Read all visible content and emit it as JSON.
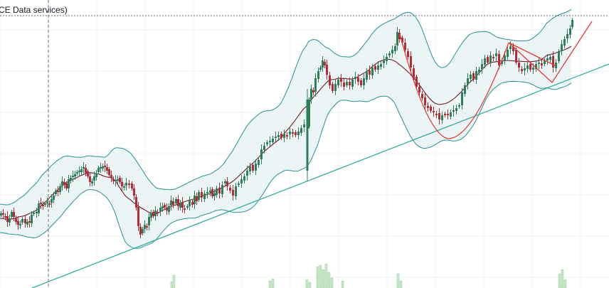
{
  "header": {
    "source_text": "CE Data services)"
  },
  "colors": {
    "background": "#ffffff",
    "grid": "#eef0f4",
    "candle_up": "#2e7d5b",
    "candle_down": "#b22b35",
    "bollinger_band": "#2a8f96",
    "bollinger_fill": "#e6f3f3",
    "moving_average": "#7a2a35",
    "trendline": "#26a69a",
    "pattern_line": "#e53935",
    "volume": "#c8e6c9",
    "crosshair": "#6a6d78"
  },
  "chart_data": {
    "type": "candlestick",
    "title": "",
    "xlabel": "",
    "ylabel": "",
    "grid": true,
    "x_range": [
      0,
      177
    ],
    "ylim": [
      0,
      405
    ],
    "indicators": [
      "bollinger_bands",
      "moving_average",
      "trendline",
      "cup_and_handle_pattern",
      "volume"
    ],
    "close_series": [
      [
        0,
        300
      ],
      [
        3,
        302
      ],
      [
        6,
        305
      ],
      [
        9,
        312
      ],
      [
        12,
        307
      ],
      [
        15,
        298
      ],
      [
        18,
        305
      ],
      [
        21,
        312
      ],
      [
        24,
        316
      ],
      [
        27,
        315
      ],
      [
        30,
        308
      ],
      [
        34,
        314
      ],
      [
        37,
        312
      ],
      [
        40,
        313
      ],
      [
        43,
        302
      ],
      [
        46,
        299
      ],
      [
        50,
        298
      ],
      [
        53,
        286
      ],
      [
        56,
        287
      ],
      [
        59,
        290
      ],
      [
        62,
        286
      ],
      [
        65,
        284
      ],
      [
        68,
        286
      ],
      [
        71,
        280
      ],
      [
        74,
        275
      ],
      [
        77,
        268
      ],
      [
        80,
        268
      ],
      [
        83,
        262
      ],
      [
        86,
        255
      ],
      [
        89,
        260
      ],
      [
        92,
        265
      ],
      [
        95,
        252
      ],
      [
        98,
        250
      ],
      [
        101,
        247
      ],
      [
        104,
        245
      ],
      [
        107,
        242
      ],
      [
        110,
        240
      ],
      [
        113,
        238
      ],
      [
        116,
        235
      ],
      [
        119,
        243
      ],
      [
        122,
        248
      ],
      [
        125,
        256
      ],
      [
        128,
        255
      ],
      [
        131,
        248
      ],
      [
        134,
        244
      ],
      [
        137,
        236
      ],
      [
        140,
        235
      ],
      [
        143,
        234
      ],
      [
        146,
        234
      ],
      [
        149,
        240
      ],
      [
        152,
        246
      ],
      [
        155,
        250
      ],
      [
        158,
        255
      ],
      [
        161,
        253
      ],
      [
        164,
        252
      ],
      [
        167,
        256
      ],
      [
        170,
        262
      ],
      [
        173,
        262
      ],
      [
        176,
        257
      ],
      [
        180,
        260
      ],
      [
        184,
        265
      ],
      [
        187,
        275
      ],
      [
        190,
        292
      ],
      [
        193,
        318
      ],
      [
        196,
        330
      ],
      [
        199,
        322
      ],
      [
        202,
        316
      ],
      [
        205,
        318
      ],
      [
        208,
        305
      ],
      [
        211,
        300
      ],
      [
        214,
        304
      ],
      [
        217,
        296
      ],
      [
        220,
        298
      ],
      [
        224,
        292
      ],
      [
        227,
        290
      ],
      [
        230,
        292
      ],
      [
        233,
        296
      ],
      [
        236,
        290
      ],
      [
        239,
        282
      ],
      [
        242,
        288
      ],
      [
        246,
        280
      ],
      [
        249,
        290
      ],
      [
        252,
        285
      ],
      [
        255,
        292
      ],
      [
        258,
        294
      ],
      [
        262,
        290
      ],
      [
        265,
        282
      ],
      [
        269,
        288
      ],
      [
        272,
        275
      ],
      [
        275,
        283
      ],
      [
        278,
        270
      ],
      [
        282,
        278
      ],
      [
        286,
        272
      ],
      [
        290,
        270
      ],
      [
        294,
        268
      ],
      [
        297,
        276
      ],
      [
        300,
        272
      ],
      [
        303,
        265
      ],
      [
        307,
        272
      ],
      [
        311,
        260
      ],
      [
        315,
        255
      ],
      [
        318,
        262
      ],
      [
        322,
        268
      ],
      [
        326,
        275
      ],
      [
        330,
        262
      ],
      [
        334,
        258
      ],
      [
        338,
        252
      ],
      [
        342,
        248
      ],
      [
        346,
        240
      ],
      [
        350,
        234
      ],
      [
        354,
        240
      ],
      [
        358,
        230
      ],
      [
        362,
        225
      ],
      [
        366,
        210
      ],
      [
        370,
        205
      ],
      [
        374,
        200
      ],
      [
        378,
        198
      ],
      [
        382,
        195
      ],
      [
        386,
        192
      ],
      [
        390,
        190
      ],
      [
        394,
        194
      ],
      [
        398,
        188
      ],
      [
        402,
        190
      ],
      [
        406,
        185
      ],
      [
        410,
        188
      ],
      [
        414,
        190
      ],
      [
        418,
        185
      ],
      [
        422,
        180
      ],
      [
        426,
        175
      ],
      [
        431,
        180
      ],
      [
        433,
        140
      ],
      [
        436,
        125
      ],
      [
        439,
        130
      ],
      [
        442,
        110
      ],
      [
        446,
        100
      ],
      [
        449,
        95
      ],
      [
        452,
        85
      ],
      [
        455,
        92
      ],
      [
        458,
        105
      ],
      [
        462,
        120
      ],
      [
        466,
        128
      ],
      [
        470,
        118
      ],
      [
        474,
        112
      ],
      [
        478,
        115
      ],
      [
        482,
        122
      ],
      [
        486,
        115
      ],
      [
        490,
        120
      ],
      [
        494,
        112
      ],
      [
        498,
        108
      ],
      [
        502,
        115
      ],
      [
        506,
        120
      ],
      [
        510,
        110
      ],
      [
        514,
        100
      ],
      [
        518,
        105
      ],
      [
        522,
        95
      ],
      [
        526,
        98
      ],
      [
        530,
        92
      ],
      [
        534,
        90
      ],
      [
        538,
        85
      ],
      [
        542,
        80
      ],
      [
        546,
        75
      ],
      [
        550,
        70
      ],
      [
        554,
        65
      ],
      [
        557,
        45
      ],
      [
        560,
        55
      ],
      [
        564,
        60
      ],
      [
        568,
        70
      ],
      [
        572,
        80
      ],
      [
        576,
        95
      ],
      [
        580,
        110
      ],
      [
        584,
        122
      ],
      [
        588,
        130
      ],
      [
        592,
        138
      ],
      [
        596,
        148
      ],
      [
        600,
        152
      ],
      [
        604,
        156
      ],
      [
        608,
        158
      ],
      [
        612,
        160
      ],
      [
        616,
        168
      ],
      [
        620,
        162
      ],
      [
        624,
        160
      ],
      [
        628,
        162
      ],
      [
        632,
        158
      ],
      [
        636,
        155
      ],
      [
        640,
        152
      ],
      [
        644,
        148
      ],
      [
        648,
        130
      ],
      [
        652,
        120
      ],
      [
        656,
        110
      ],
      [
        660,
        105
      ],
      [
        664,
        112
      ],
      [
        668,
        100
      ],
      [
        672,
        98
      ],
      [
        676,
        90
      ],
      [
        680,
        82
      ],
      [
        684,
        88
      ],
      [
        688,
        78
      ],
      [
        692,
        80
      ],
      [
        696,
        75
      ],
      [
        700,
        92
      ],
      [
        704,
        85
      ],
      [
        708,
        78
      ],
      [
        712,
        70
      ],
      [
        716,
        65
      ],
      [
        720,
        72
      ],
      [
        724,
        88
      ],
      [
        728,
        95
      ],
      [
        732,
        100
      ],
      [
        736,
        96
      ],
      [
        740,
        92
      ],
      [
        744,
        98
      ],
      [
        748,
        95
      ],
      [
        752,
        90
      ],
      [
        756,
        88
      ],
      [
        760,
        92
      ],
      [
        764,
        85
      ],
      [
        768,
        82
      ],
      [
        772,
        80
      ],
      [
        776,
        95
      ],
      [
        780,
        88
      ],
      [
        784,
        72
      ],
      [
        788,
        62
      ],
      [
        792,
        55
      ],
      [
        796,
        48
      ],
      [
        800,
        40
      ],
      [
        803,
        28
      ]
    ]
  }
}
